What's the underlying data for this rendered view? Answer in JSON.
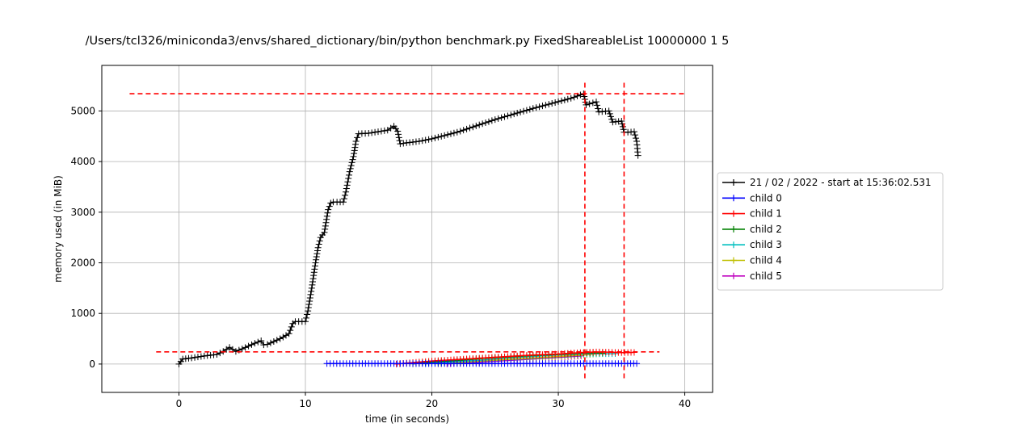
{
  "chart_data": {
    "type": "line",
    "title": "/Users/tcl326/miniconda3/envs/shared_dictionary/bin/python benchmark.py FixedShareableList 10000000 1 5",
    "xlabel": "time (in seconds)",
    "ylabel": "memory used (in MiB)",
    "xlim": [
      -6.1,
      42.2
    ],
    "ylim": [
      -560,
      5900
    ],
    "xticks": [
      0,
      10,
      20,
      30,
      40
    ],
    "yticks": [
      0,
      1000,
      2000,
      3000,
      4000,
      5000
    ],
    "grid": true,
    "legend_position": "center-right, outside plot",
    "marker": "+",
    "series": [
      {
        "name": "21 / 02 / 2022 - start at 15:36:02.531",
        "color": "#000000",
        "x": [
          0,
          0.3,
          1,
          2,
          3,
          3.5,
          4,
          4.5,
          5,
          6,
          6.5,
          6.7,
          7,
          8,
          8.7,
          9,
          9.2,
          10,
          10.2,
          10.5,
          10.8,
          11,
          11.2,
          11.5,
          11.8,
          12,
          12.2,
          12.5,
          13,
          13.2,
          13.5,
          13.8,
          14,
          14.2,
          15,
          16,
          16.5,
          17,
          17.3,
          17.5,
          18,
          19,
          20,
          22,
          25,
          28,
          31,
          32,
          32.2,
          33,
          33.2,
          34,
          34.3,
          35,
          35.2,
          35.5,
          36,
          36.2,
          36.3
        ],
        "y": [
          0,
          100,
          120,
          160,
          190,
          250,
          330,
          250,
          300,
          410,
          460,
          380,
          390,
          500,
          600,
          800,
          840,
          840,
          1050,
          1500,
          2000,
          2300,
          2500,
          2600,
          3050,
          3180,
          3200,
          3200,
          3200,
          3400,
          3800,
          4100,
          4400,
          4550,
          4560,
          4600,
          4620,
          4700,
          4600,
          4350,
          4370,
          4400,
          4450,
          4580,
          4830,
          5050,
          5250,
          5340,
          5120,
          5180,
          4980,
          5000,
          4780,
          4800,
          4580,
          4580,
          4590,
          4400,
          4120
        ]
      },
      {
        "name": "child 0",
        "color": "#0000ff",
        "x": [
          11.7,
          13,
          15,
          17,
          19,
          21,
          23,
          25,
          27,
          29,
          31,
          33,
          35,
          36.2
        ],
        "y": [
          10,
          10,
          10,
          10,
          10,
          10,
          10,
          10,
          10,
          10,
          10,
          10,
          10,
          10
        ]
      },
      {
        "name": "child 1",
        "color": "#ff0000",
        "x": [
          17.2,
          18,
          20,
          22,
          24,
          26,
          28,
          30,
          32,
          33,
          34,
          35,
          36
        ],
        "y": [
          0,
          20,
          60,
          90,
          120,
          150,
          180,
          200,
          230,
          240,
          235,
          225,
          230
        ]
      },
      {
        "name": "child 2",
        "color": "#008000",
        "x": [
          18.5,
          20,
          22,
          24,
          26,
          28,
          30,
          32,
          33.5
        ],
        "y": [
          5,
          40,
          70,
          110,
          140,
          170,
          190,
          220,
          215
        ]
      },
      {
        "name": "child 3",
        "color": "#00bfbf",
        "x": [
          19.5,
          20.5,
          22,
          24,
          26,
          28,
          30,
          32,
          34.5
        ],
        "y": [
          5,
          25,
          50,
          80,
          120,
          150,
          180,
          200,
          205
        ]
      },
      {
        "name": "child 4",
        "color": "#bfbf00",
        "x": [
          20.5,
          22,
          24,
          26,
          28,
          30,
          32,
          33
        ],
        "y": [
          5,
          30,
          60,
          90,
          120,
          150,
          180,
          200
        ]
      },
      {
        "name": "child 5",
        "color": "#bf00bf",
        "x": [
          21.2,
          22,
          24,
          26,
          28,
          30,
          31.8
        ],
        "y": [
          5,
          15,
          40,
          70,
          100,
          130,
          160
        ]
      }
    ],
    "reference_lines": [
      {
        "orientation": "horizontal",
        "value": 5340,
        "from": -3.9,
        "to": 40,
        "color": "#ff0000",
        "style": "dashed"
      },
      {
        "orientation": "horizontal",
        "value": 240,
        "from": -1.8,
        "to": 38,
        "color": "#ff0000",
        "style": "dashed"
      },
      {
        "orientation": "vertical",
        "value": 32.1,
        "from": -280,
        "to": 5620,
        "color": "#ff0000",
        "style": "dashed"
      },
      {
        "orientation": "vertical",
        "value": 35.2,
        "from": -280,
        "to": 5620,
        "color": "#ff0000",
        "style": "dashed"
      }
    ]
  }
}
